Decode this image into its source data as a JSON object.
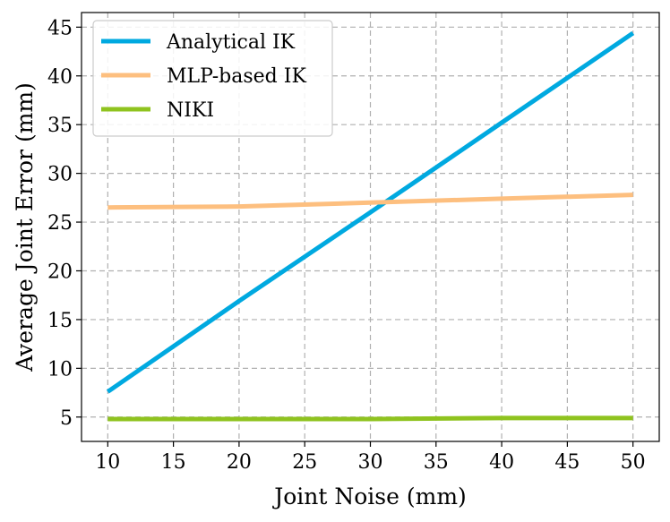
{
  "chart_data": {
    "type": "line",
    "title": "",
    "xlabel": "Joint Noise (mm)",
    "ylabel": "Average Joint Error (mm)",
    "xlim": [
      8,
      52
    ],
    "ylim": [
      2.5,
      46.5
    ],
    "xticks": [
      10,
      15,
      20,
      25,
      30,
      35,
      40,
      45,
      50
    ],
    "yticks": [
      5,
      10,
      15,
      20,
      25,
      30,
      35,
      40,
      45
    ],
    "grid": true,
    "legend_position": "top-left",
    "x": [
      10,
      20,
      30,
      40,
      50
    ],
    "series": [
      {
        "name": "Analytical IK",
        "color": "#00a9e0",
        "values": [
          7.6,
          16.9,
          26.0,
          35.2,
          44.4
        ]
      },
      {
        "name": "MLP-based IK",
        "color": "#fdbf7f",
        "values": [
          26.5,
          26.6,
          27.0,
          27.4,
          27.8
        ]
      },
      {
        "name": "NIKI",
        "color": "#8fc31f",
        "values": [
          4.8,
          4.8,
          4.8,
          4.9,
          4.9
        ]
      }
    ]
  }
}
